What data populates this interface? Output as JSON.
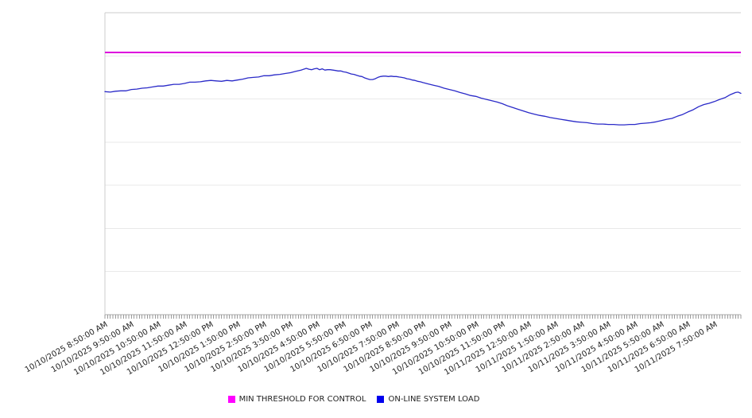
{
  "chart_data": {
    "type": "line",
    "title": "",
    "x_axis": {
      "label": "",
      "span_hours": 24,
      "minor_tick_interval_hours": 0.1,
      "tick_label_rotation_deg": -30,
      "tick_labels": [
        "10/10/2025 8:50:00 AM",
        "10/10/2025 9:50:00 AM",
        "10/10/2025 10:50:00 AM",
        "10/10/2025 11:50:00 AM",
        "10/10/2025 12:50:00 PM",
        "10/10/2025 1:50:00 PM",
        "10/10/2025 2:50:00 PM",
        "10/10/2025 3:50:00 PM",
        "10/10/2025 4:50:00 PM",
        "10/10/2025 5:50:00 PM",
        "10/10/2025 6:50:00 PM",
        "10/10/2025 7:50:00 PM",
        "10/10/2025 8:50:00 PM",
        "10/10/2025 9:50:00 PM",
        "10/10/2025 10:50:00 PM",
        "10/10/2025 11:50:00 PM",
        "10/11/2025 12:50:00 AM",
        "10/11/2025 1:50:00 AM",
        "10/11/2025 2:50:00 AM",
        "10/11/2025 3:50:00 AM",
        "10/11/2025 4:50:00 AM",
        "10/11/2025 5:50:00 AM",
        "10/11/2025 6:50:00 AM",
        "10/11/2025 7:50:00 AM"
      ]
    },
    "y_axis": {
      "label": "",
      "min": 0,
      "max": 7,
      "gridline_step": 1,
      "tick_labels_visible": false
    },
    "grid": true,
    "series": [
      {
        "name": "MIN THRESHOLD FOR CONTROL",
        "type": "constant",
        "color": "#dd00dd",
        "width": 2,
        "value": 6.08
      },
      {
        "name": "ON-LINE SYSTEM LOAD",
        "type": "line",
        "color": "#2a2ac8",
        "width": 1.3,
        "points": [
          [
            0,
            5.17
          ],
          [
            0.2,
            5.16
          ],
          [
            0.4,
            5.18
          ],
          [
            0.6,
            5.19
          ],
          [
            0.8,
            5.19
          ],
          [
            1,
            5.22
          ],
          [
            1.2,
            5.23
          ],
          [
            1.4,
            5.25
          ],
          [
            1.6,
            5.26
          ],
          [
            1.8,
            5.28
          ],
          [
            2,
            5.3
          ],
          [
            2.2,
            5.3
          ],
          [
            2.4,
            5.32
          ],
          [
            2.6,
            5.34
          ],
          [
            2.8,
            5.34
          ],
          [
            3,
            5.36
          ],
          [
            3.2,
            5.39
          ],
          [
            3.4,
            5.39
          ],
          [
            3.6,
            5.4
          ],
          [
            3.8,
            5.42
          ],
          [
            4,
            5.43
          ],
          [
            4.2,
            5.42
          ],
          [
            4.4,
            5.41
          ],
          [
            4.6,
            5.43
          ],
          [
            4.8,
            5.42
          ],
          [
            5,
            5.44
          ],
          [
            5.2,
            5.46
          ],
          [
            5.4,
            5.49
          ],
          [
            5.6,
            5.5
          ],
          [
            5.8,
            5.51
          ],
          [
            6,
            5.54
          ],
          [
            6.2,
            5.54
          ],
          [
            6.4,
            5.56
          ],
          [
            6.6,
            5.57
          ],
          [
            6.8,
            5.59
          ],
          [
            7,
            5.61
          ],
          [
            7.2,
            5.64
          ],
          [
            7.4,
            5.67
          ],
          [
            7.5,
            5.69
          ],
          [
            7.6,
            5.71
          ],
          [
            7.7,
            5.69
          ],
          [
            7.8,
            5.68
          ],
          [
            7.9,
            5.7
          ],
          [
            8,
            5.71
          ],
          [
            8.1,
            5.68
          ],
          [
            8.2,
            5.7
          ],
          [
            8.3,
            5.67
          ],
          [
            8.4,
            5.68
          ],
          [
            8.5,
            5.68
          ],
          [
            8.6,
            5.67
          ],
          [
            8.7,
            5.66
          ],
          [
            8.8,
            5.65
          ],
          [
            8.9,
            5.65
          ],
          [
            9,
            5.63
          ],
          [
            9.1,
            5.62
          ],
          [
            9.2,
            5.6
          ],
          [
            9.3,
            5.58
          ],
          [
            9.4,
            5.57
          ],
          [
            9.5,
            5.55
          ],
          [
            9.6,
            5.53
          ],
          [
            9.7,
            5.52
          ],
          [
            9.8,
            5.49
          ],
          [
            9.9,
            5.47
          ],
          [
            10,
            5.45
          ],
          [
            10.1,
            5.45
          ],
          [
            10.2,
            5.47
          ],
          [
            10.3,
            5.5
          ],
          [
            10.4,
            5.52
          ],
          [
            10.5,
            5.53
          ],
          [
            10.6,
            5.53
          ],
          [
            10.7,
            5.52
          ],
          [
            10.8,
            5.53
          ],
          [
            10.9,
            5.52
          ],
          [
            11,
            5.52
          ],
          [
            11.1,
            5.51
          ],
          [
            11.2,
            5.5
          ],
          [
            11.3,
            5.49
          ],
          [
            11.4,
            5.47
          ],
          [
            11.5,
            5.46
          ],
          [
            11.6,
            5.44
          ],
          [
            11.7,
            5.43
          ],
          [
            11.8,
            5.41
          ],
          [
            11.9,
            5.4
          ],
          [
            12,
            5.38
          ],
          [
            12.2,
            5.35
          ],
          [
            12.4,
            5.32
          ],
          [
            12.6,
            5.29
          ],
          [
            12.8,
            5.25
          ],
          [
            13,
            5.22
          ],
          [
            13.2,
            5.19
          ],
          [
            13.4,
            5.15
          ],
          [
            13.6,
            5.12
          ],
          [
            13.8,
            5.08
          ],
          [
            14,
            5.06
          ],
          [
            14.2,
            5.02
          ],
          [
            14.4,
            4.99
          ],
          [
            14.6,
            4.96
          ],
          [
            14.8,
            4.93
          ],
          [
            15,
            4.89
          ],
          [
            15.2,
            4.84
          ],
          [
            15.4,
            4.8
          ],
          [
            15.6,
            4.76
          ],
          [
            15.8,
            4.72
          ],
          [
            16,
            4.68
          ],
          [
            16.2,
            4.65
          ],
          [
            16.4,
            4.62
          ],
          [
            16.6,
            4.6
          ],
          [
            16.8,
            4.57
          ],
          [
            17,
            4.55
          ],
          [
            17.2,
            4.53
          ],
          [
            17.4,
            4.51
          ],
          [
            17.6,
            4.49
          ],
          [
            17.8,
            4.47
          ],
          [
            18,
            4.46
          ],
          [
            18.2,
            4.45
          ],
          [
            18.4,
            4.43
          ],
          [
            18.6,
            4.42
          ],
          [
            18.8,
            4.42
          ],
          [
            19,
            4.41
          ],
          [
            19.2,
            4.41
          ],
          [
            19.4,
            4.4
          ],
          [
            19.6,
            4.4
          ],
          [
            19.8,
            4.41
          ],
          [
            20,
            4.41
          ],
          [
            20.2,
            4.43
          ],
          [
            20.4,
            4.44
          ],
          [
            20.6,
            4.45
          ],
          [
            20.8,
            4.47
          ],
          [
            21,
            4.5
          ],
          [
            21.2,
            4.53
          ],
          [
            21.4,
            4.55
          ],
          [
            21.6,
            4.6
          ],
          [
            21.8,
            4.64
          ],
          [
            22,
            4.7
          ],
          [
            22.2,
            4.75
          ],
          [
            22.4,
            4.82
          ],
          [
            22.6,
            4.87
          ],
          [
            22.8,
            4.9
          ],
          [
            23,
            4.94
          ],
          [
            23.2,
            4.99
          ],
          [
            23.4,
            5.03
          ],
          [
            23.6,
            5.1
          ],
          [
            23.8,
            5.15
          ],
          [
            23.9,
            5.16
          ],
          [
            24,
            5.13
          ]
        ]
      }
    ],
    "legend": {
      "position": "bottom-center",
      "items": [
        {
          "label": "MIN THRESHOLD FOR CONTROL",
          "swatch_color": "#ff00ff"
        },
        {
          "label": "ON-LINE SYSTEM LOAD",
          "swatch_color": "#0000ee"
        }
      ]
    },
    "colors": {
      "gridline": "#e9e9e9",
      "plot_border": "#cccccc",
      "axis": "#aaaaaa",
      "tick": "#999999",
      "label_text": "#222222"
    }
  }
}
